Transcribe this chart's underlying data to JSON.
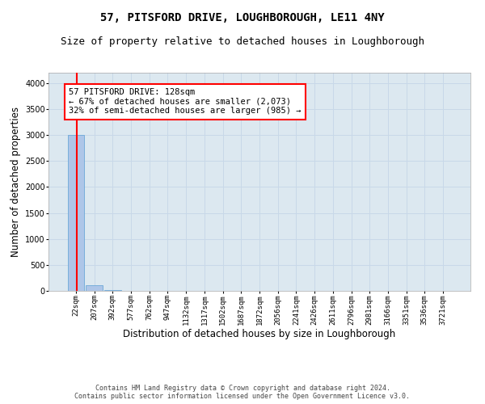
{
  "title": "57, PITSFORD DRIVE, LOUGHBOROUGH, LE11 4NY",
  "subtitle": "Size of property relative to detached houses in Loughborough",
  "xlabel": "Distribution of detached houses by size in Loughborough",
  "ylabel": "Number of detached properties",
  "footer_line1": "Contains HM Land Registry data © Crown copyright and database right 2024.",
  "footer_line2": "Contains public sector information licensed under the Open Government Licence v3.0.",
  "categories": [
    "22sqm",
    "207sqm",
    "392sqm",
    "577sqm",
    "762sqm",
    "947sqm",
    "1132sqm",
    "1317sqm",
    "1502sqm",
    "1687sqm",
    "1872sqm",
    "2056sqm",
    "2241sqm",
    "2426sqm",
    "2611sqm",
    "2796sqm",
    "2981sqm",
    "3166sqm",
    "3351sqm",
    "3536sqm",
    "3721sqm"
  ],
  "bar_values": [
    3000,
    110,
    8,
    4,
    2,
    1,
    1,
    1,
    1,
    1,
    1,
    1,
    1,
    1,
    1,
    1,
    1,
    1,
    1,
    1,
    0
  ],
  "bar_color": "#aec6e8",
  "bar_edge_color": "#5a9fd4",
  "ylim": [
    0,
    4200
  ],
  "yticks": [
    0,
    500,
    1000,
    1500,
    2000,
    2500,
    3000,
    3500,
    4000
  ],
  "annotation_text_line1": "57 PITSFORD DRIVE: 128sqm",
  "annotation_text_line2": "← 67% of detached houses are smaller (2,073)",
  "annotation_text_line3": "32% of semi-detached houses are larger (985) →",
  "annotation_box_color": "white",
  "annotation_box_edge_color": "red",
  "red_line_color": "red",
  "grid_color": "#c8d8e8",
  "bg_color": "#dce8f0",
  "title_fontsize": 10,
  "subtitle_fontsize": 9,
  "tick_fontsize": 6.5,
  "ylabel_fontsize": 8.5,
  "xlabel_fontsize": 8.5,
  "annotation_fontsize": 7.5,
  "footer_fontsize": 6
}
